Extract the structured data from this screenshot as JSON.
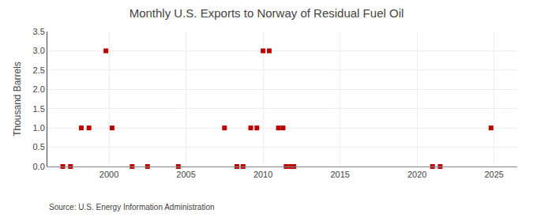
{
  "chart_data": {
    "type": "scatter",
    "title": "Monthly U.S. Exports to Norway of Residual Fuel Oil",
    "ylabel": "Thousand Barrels",
    "annotations": [
      "Source: U.S. Energy Information Administration"
    ],
    "x": [
      1997.0,
      1997.5,
      1998.2,
      1998.7,
      1999.8,
      2000.2,
      2001.5,
      2002.5,
      2004.5,
      2007.5,
      2008.3,
      2008.7,
      2009.2,
      2009.6,
      2010.0,
      2010.4,
      2011.0,
      2011.3,
      2011.5,
      2011.8,
      2012.0,
      2021.0,
      2021.5,
      2024.8
    ],
    "values": [
      0,
      0,
      1,
      1,
      3,
      1,
      0,
      0,
      0,
      1,
      0,
      0,
      1,
      1,
      3,
      3,
      1,
      1,
      0,
      0,
      0,
      0,
      0,
      1
    ],
    "color": "#bb0000",
    "marker": "square",
    "xlim": [
      1996.0,
      2026.5
    ],
    "xticks": [
      2000,
      2005,
      2010,
      2015,
      2020,
      2025
    ],
    "ylim": [
      0.0,
      3.5
    ],
    "yticks": [
      {
        "value": 0.0,
        "label": "0.0"
      },
      0.5,
      {
        "value": 1.0,
        "label": "1.0"
      },
      1.5,
      {
        "value": 2.0,
        "label": "2.0"
      },
      2.5,
      {
        "value": 3.0,
        "label": "3.0"
      },
      3.5
    ],
    "grid": true
  }
}
